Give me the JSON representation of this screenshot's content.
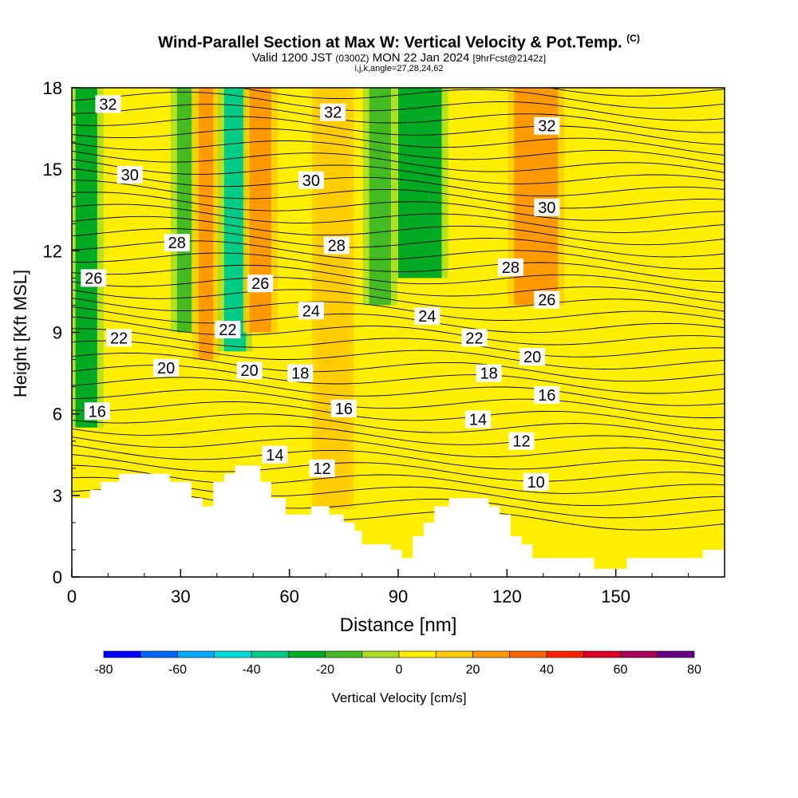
{
  "header": {
    "title": "Wind-Parallel Section at Max W: Vertical Velocity & Pot.Temp.",
    "copyright": "(C)",
    "valid_prefix": "Valid 1200 JST ",
    "valid_utc": "(0300Z)",
    "valid_date": " MON 22 Jan 2024 ",
    "fcst": "[9hrFcst@2142z]",
    "indices": "i,j,k,angle=27,28,24,62"
  },
  "chart_data": {
    "type": "heatmap",
    "xlabel": "Distance [nm]",
    "ylabel": "Height [Kft MSL]",
    "xlim": [
      0,
      180
    ],
    "ylim": [
      0,
      18
    ],
    "x_ticks": [
      0,
      30,
      60,
      90,
      120,
      150
    ],
    "y_ticks": [
      0,
      3,
      6,
      9,
      12,
      15,
      18
    ],
    "colorbar": {
      "label": "Vertical Velocity [cm/s]",
      "ticks": [
        -80,
        -60,
        -40,
        -20,
        0,
        20,
        40,
        60,
        80
      ],
      "levels": [
        -80,
        -70,
        -60,
        -50,
        -40,
        -30,
        -20,
        -10,
        0,
        10,
        20,
        30,
        40,
        50,
        60,
        70,
        80
      ],
      "colors": [
        "#0000ff",
        "#0066ff",
        "#00aaff",
        "#00dddd",
        "#00cc88",
        "#00aa22",
        "#44bb22",
        "#aadd22",
        "#ffee00",
        "#ffcc00",
        "#ff9900",
        "#ff6600",
        "#ff2200",
        "#dd0022",
        "#aa0055",
        "#660088"
      ]
    },
    "terrain": [
      [
        0,
        2.9
      ],
      [
        5,
        2.9
      ],
      [
        5,
        3.2
      ],
      [
        8,
        3.2
      ],
      [
        8,
        3.5
      ],
      [
        13,
        3.5
      ],
      [
        13,
        3.8
      ],
      [
        27,
        3.8
      ],
      [
        27,
        3.5
      ],
      [
        33,
        3.5
      ],
      [
        33,
        2.9
      ],
      [
        36,
        2.9
      ],
      [
        36,
        2.6
      ],
      [
        39,
        2.6
      ],
      [
        39,
        3.5
      ],
      [
        42,
        3.5
      ],
      [
        42,
        3.8
      ],
      [
        45,
        3.8
      ],
      [
        45,
        4.1
      ],
      [
        52,
        4.1
      ],
      [
        52,
        3.5
      ],
      [
        55,
        3.5
      ],
      [
        55,
        2.9
      ],
      [
        59,
        2.9
      ],
      [
        59,
        2.3
      ],
      [
        66,
        2.3
      ],
      [
        66,
        2.6
      ],
      [
        71,
        2.6
      ],
      [
        71,
        2.3
      ],
      [
        75,
        2.3
      ],
      [
        75,
        2.0
      ],
      [
        78,
        2.0
      ],
      [
        78,
        1.7
      ],
      [
        80,
        1.7
      ],
      [
        80,
        1.2
      ],
      [
        88,
        1.2
      ],
      [
        88,
        1.0
      ],
      [
        91,
        1.0
      ],
      [
        91,
        0.7
      ],
      [
        94,
        0.7
      ],
      [
        94,
        1.5
      ],
      [
        97,
        1.5
      ],
      [
        97,
        2.0
      ],
      [
        100,
        2.0
      ],
      [
        100,
        2.6
      ],
      [
        104,
        2.6
      ],
      [
        104,
        2.9
      ],
      [
        115,
        2.9
      ],
      [
        115,
        2.6
      ],
      [
        118,
        2.6
      ],
      [
        118,
        2.3
      ],
      [
        121,
        2.3
      ],
      [
        121,
        1.5
      ],
      [
        124,
        1.5
      ],
      [
        124,
        1.2
      ],
      [
        127,
        1.2
      ],
      [
        127,
        0.7
      ],
      [
        144,
        0.7
      ],
      [
        144,
        0.3
      ],
      [
        153,
        0.3
      ],
      [
        153,
        0.7
      ],
      [
        174,
        0.7
      ],
      [
        174,
        1.0
      ],
      [
        180,
        1.0
      ]
    ],
    "vertical_velocity_bands": [
      {
        "x": 4,
        "w": 6,
        "y0": 5.5,
        "value": -25
      },
      {
        "x": 31,
        "w": 4,
        "y0": 9,
        "value": -20
      },
      {
        "x": 37,
        "w": 4,
        "y0": 8,
        "value": 22
      },
      {
        "x": 45,
        "w": 6,
        "y0": 8.3,
        "value": -40
      },
      {
        "x": 52,
        "w": 6,
        "y0": 9,
        "value": 20
      },
      {
        "x": 85,
        "w": 6,
        "y0": 10,
        "value": -20
      },
      {
        "x": 96,
        "w": 12,
        "y0": 11,
        "value": -25
      },
      {
        "x": 128,
        "w": 12,
        "y0": 10,
        "value": 22
      },
      {
        "x": 72,
        "w": 8,
        "y0": 2.5,
        "value": 15
      }
    ],
    "theta_labels": [
      {
        "text": "32",
        "x": 10,
        "y": 17.4
      },
      {
        "text": "30",
        "x": 16,
        "y": 14.8
      },
      {
        "text": "28",
        "x": 29,
        "y": 12.3
      },
      {
        "text": "26",
        "x": 6,
        "y": 11.0
      },
      {
        "text": "22",
        "x": 13,
        "y": 8.8
      },
      {
        "text": "20",
        "x": 26,
        "y": 7.7
      },
      {
        "text": "16",
        "x": 7,
        "y": 6.1
      },
      {
        "text": "32",
        "x": 72,
        "y": 17.1
      },
      {
        "text": "30",
        "x": 66,
        "y": 14.6
      },
      {
        "text": "28",
        "x": 73,
        "y": 12.2
      },
      {
        "text": "26",
        "x": 52,
        "y": 10.8
      },
      {
        "text": "24",
        "x": 66,
        "y": 9.8
      },
      {
        "text": "22",
        "x": 43,
        "y": 9.1
      },
      {
        "text": "20",
        "x": 49,
        "y": 7.6
      },
      {
        "text": "18",
        "x": 63,
        "y": 7.5
      },
      {
        "text": "16",
        "x": 75,
        "y": 6.2
      },
      {
        "text": "14",
        "x": 56,
        "y": 4.5
      },
      {
        "text": "12",
        "x": 69,
        "y": 4.0
      },
      {
        "text": "24",
        "x": 98,
        "y": 9.6
      },
      {
        "text": "22",
        "x": 111,
        "y": 8.8
      },
      {
        "text": "32",
        "x": 131,
        "y": 16.6
      },
      {
        "text": "30",
        "x": 131,
        "y": 13.6
      },
      {
        "text": "28",
        "x": 121,
        "y": 11.4
      },
      {
        "text": "26",
        "x": 131,
        "y": 10.2
      },
      {
        "text": "20",
        "x": 127,
        "y": 8.1
      },
      {
        "text": "18",
        "x": 115,
        "y": 7.5
      },
      {
        "text": "16",
        "x": 131,
        "y": 6.7
      },
      {
        "text": "14",
        "x": 112,
        "y": 5.8
      },
      {
        "text": "12",
        "x": 124,
        "y": 5.0
      },
      {
        "text": "10",
        "x": 128,
        "y": 3.5
      }
    ]
  }
}
